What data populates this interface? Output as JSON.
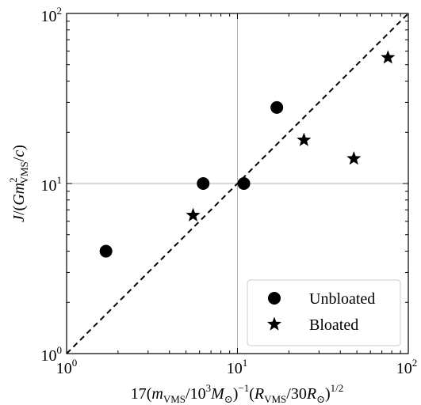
{
  "chart_data": {
    "type": "scatter",
    "xscale": "log",
    "yscale": "log",
    "xlim": [
      1,
      100
    ],
    "ylim": [
      1,
      100
    ],
    "grid": "major lines at 10",
    "legend_placement": "bottom-right",
    "x_tick_labels": [
      {
        "base": "10",
        "exp": "0"
      },
      {
        "base": "10",
        "exp": "1"
      },
      {
        "base": "10",
        "exp": "2"
      }
    ],
    "y_tick_labels": [
      {
        "base": "10",
        "exp": "0"
      },
      {
        "base": "10",
        "exp": "1"
      },
      {
        "base": "10",
        "exp": "2"
      }
    ],
    "xlabel": {
      "t1": "17(",
      "t2": "m",
      "t3": "VMS",
      "t4": "/10",
      "t5": "3",
      "t6": "M",
      "t7": "⊙",
      "t8": ")",
      "t9": "−1",
      "t10": "(",
      "t11": "R",
      "t12": "VMS",
      "t13": "/30",
      "t14": "R",
      "t15": "⊙",
      "t16": ")",
      "t17": "1/2"
    },
    "ylabel": {
      "t1": "J",
      "t2": "/(",
      "t3": "Gm",
      "t4": "2",
      "t5": "VMS",
      "t6": "/",
      "t7": "c",
      "t8": ")"
    },
    "diagonal": {
      "style": "dashed",
      "color": "#000000",
      "points": [
        [
          1,
          1
        ],
        [
          100,
          100
        ]
      ]
    },
    "series": [
      {
        "name": "Unbloated",
        "marker": "circle",
        "color": "#000000",
        "points": [
          [
            1.7,
            4.0
          ],
          [
            6.3,
            10.0
          ],
          [
            10.9,
            10.0
          ],
          [
            17.0,
            28.0
          ]
        ]
      },
      {
        "name": "Bloated",
        "marker": "star",
        "color": "#000000",
        "points": [
          [
            5.5,
            6.5
          ],
          [
            24.5,
            18.0
          ],
          [
            48.0,
            14.0
          ],
          [
            76.0,
            55.0
          ]
        ]
      }
    ]
  }
}
